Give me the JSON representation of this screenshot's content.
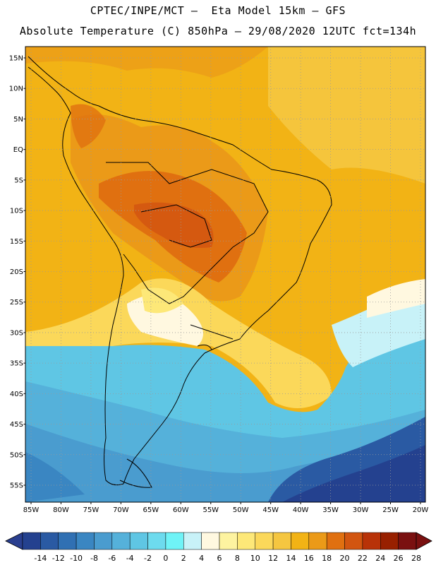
{
  "header": {
    "line1": "CPTEC/INPE/MCT –  Eta Model 15km – GFS",
    "line2": "Absolute Temperature (C) 850hPa – 29/08/2020 12UTC fct=134h"
  },
  "map": {
    "lat_labels": [
      "15N",
      "10N",
      "5N",
      "EQ",
      "5S",
      "10S",
      "15S",
      "20S",
      "25S",
      "30S",
      "35S",
      "40S",
      "45S",
      "50S",
      "55S"
    ],
    "lon_labels": [
      "85W",
      "80W",
      "75W",
      "70W",
      "65W",
      "60W",
      "55W",
      "50W",
      "45W",
      "40W",
      "35W",
      "30W",
      "25W",
      "20W"
    ],
    "lon_range": [
      -85,
      -20
    ],
    "lat_range": [
      -57.5,
      17
    ],
    "grid": "dotted"
  },
  "colorbar": {
    "labels": [
      "-14",
      "-12",
      "-10",
      "-8",
      "-6",
      "-4",
      "-2",
      "0",
      "2",
      "4",
      "6",
      "8",
      "10",
      "12",
      "14",
      "16",
      "18",
      "20",
      "22",
      "24",
      "26",
      "28"
    ],
    "under_color": "#2a3f8f",
    "over_color": "#7a1010",
    "colors": [
      "#24418f",
      "#2a5aa3",
      "#3070b3",
      "#3a86c2",
      "#4a9ccf",
      "#55b1da",
      "#5fc6e4",
      "#6ddbee",
      "#6ff3f7",
      "#c8f2f8",
      "#fff8e0",
      "#fdf3a0",
      "#fde878",
      "#fbd85a",
      "#f5c640",
      "#f2b315",
      "#eb9a18",
      "#e07010",
      "#d25510",
      "#b83208",
      "#982000",
      "#7a1010"
    ]
  }
}
